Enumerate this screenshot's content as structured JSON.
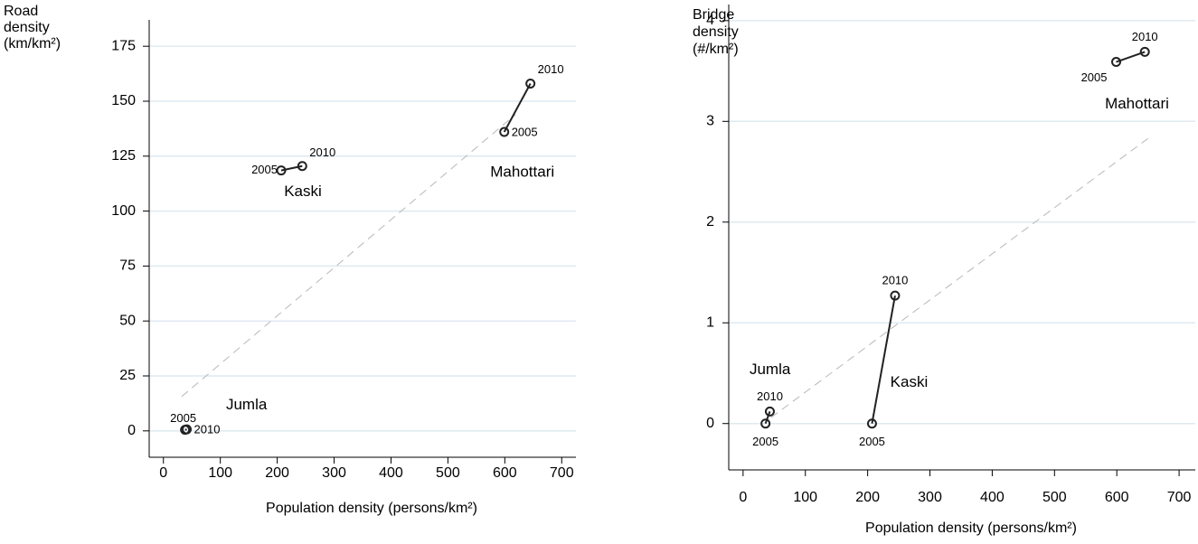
{
  "chart_data": [
    {
      "type": "scatter",
      "x_label": "Population density (persons/km²)",
      "y_label": [
        "Road",
        "density",
        "(km/km²)"
      ],
      "xlim": [
        -25,
        725
      ],
      "xticks": [
        0,
        100,
        200,
        300,
        400,
        500,
        600,
        700
      ],
      "ylim": [
        -12,
        187
      ],
      "yticks": [
        0,
        25,
        50,
        75,
        100,
        125,
        150,
        175
      ],
      "grid": true,
      "color": "#222222",
      "fit_line": {
        "x": [
          32,
          619
        ],
        "y": [
          15.6,
          144
        ]
      },
      "series": [
        {
          "name": "Jumla",
          "point_labels": [
            "2005",
            "2010"
          ],
          "x": [
            38,
            41
          ],
          "values": [
            0.5,
            0.7
          ]
        },
        {
          "name": "Kaski",
          "point_labels": [
            "2005",
            "2010"
          ],
          "x": [
            207,
            244
          ],
          "values": [
            118.5,
            120.5
          ]
        },
        {
          "name": "Mahottari",
          "point_labels": [
            "2005",
            "2010"
          ],
          "x": [
            599,
            645
          ],
          "values": [
            136,
            158
          ]
        }
      ]
    },
    {
      "type": "scatter",
      "x_label": "Population density (persons/km²)",
      "y_label": [
        "Bridge",
        "density",
        "(#/km²)"
      ],
      "xlim": [
        -23,
        726
      ],
      "xticks": [
        0,
        100,
        200,
        300,
        400,
        500,
        600,
        700
      ],
      "ylim": [
        -0.46,
        4.16
      ],
      "yticks": [
        0,
        1,
        2,
        3,
        4
      ],
      "grid": true,
      "color": "#222222",
      "fit_line": {
        "x": [
          45,
          650
        ],
        "y": [
          0.06,
          2.83
        ]
      },
      "series": [
        {
          "name": "Jumla",
          "point_labels": [
            "2005",
            "2010"
          ],
          "x": [
            36,
            43
          ],
          "values": [
            0.0,
            0.12
          ]
        },
        {
          "name": "Kaski",
          "point_labels": [
            "2005",
            "2010"
          ],
          "x": [
            207,
            244
          ],
          "values": [
            0.0,
            1.27
          ]
        },
        {
          "name": "Mahottari",
          "point_labels": [
            "2005",
            "2010"
          ],
          "x": [
            599,
            645
          ],
          "values": [
            3.59,
            3.69
          ]
        }
      ]
    }
  ]
}
